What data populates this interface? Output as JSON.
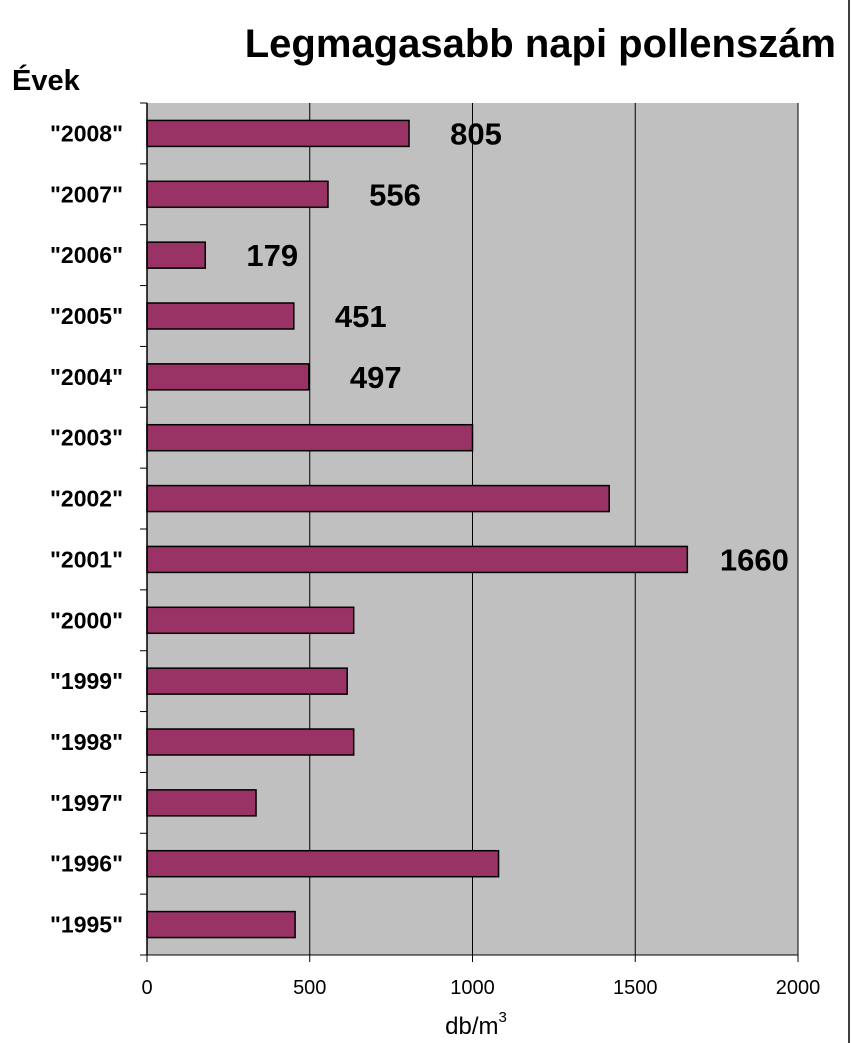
{
  "chart_data": {
    "type": "bar",
    "orientation": "horizontal",
    "title": "Legmagasabb napi pollenszám",
    "ylabel": "Évek",
    "xlabel_base": "db/m",
    "xlabel_sup": "3",
    "categories": [
      "\"2008\"",
      "\"2007\"",
      "\"2006\"",
      "\"2005\"",
      "\"2004\"",
      "\"2003\"",
      "\"2002\"",
      "\"2001\"",
      "\"2000\"",
      "\"1999\"",
      "\"1998\"",
      "\"1997\"",
      "\"1996\"",
      "\"1995\""
    ],
    "values": [
      805,
      556,
      179,
      451,
      497,
      1000,
      1420,
      1660,
      635,
      615,
      635,
      335,
      1080,
      455
    ],
    "data_labels": [
      "805",
      "556",
      "179",
      "451",
      "497",
      "",
      "",
      "1660",
      "",
      "",
      "",
      "",
      "",
      ""
    ],
    "xlim": [
      0,
      2000
    ],
    "xticks": [
      0,
      500,
      1000,
      1500,
      2000
    ],
    "xtick_labels": [
      "0",
      "500",
      "1000",
      "1500",
      "2000"
    ],
    "grid": "vertical",
    "colors": {
      "bar_fill": "#993366",
      "bar_stroke": "#000000",
      "plot_bg": "#c0c0c0",
      "grid": "#000000"
    }
  }
}
